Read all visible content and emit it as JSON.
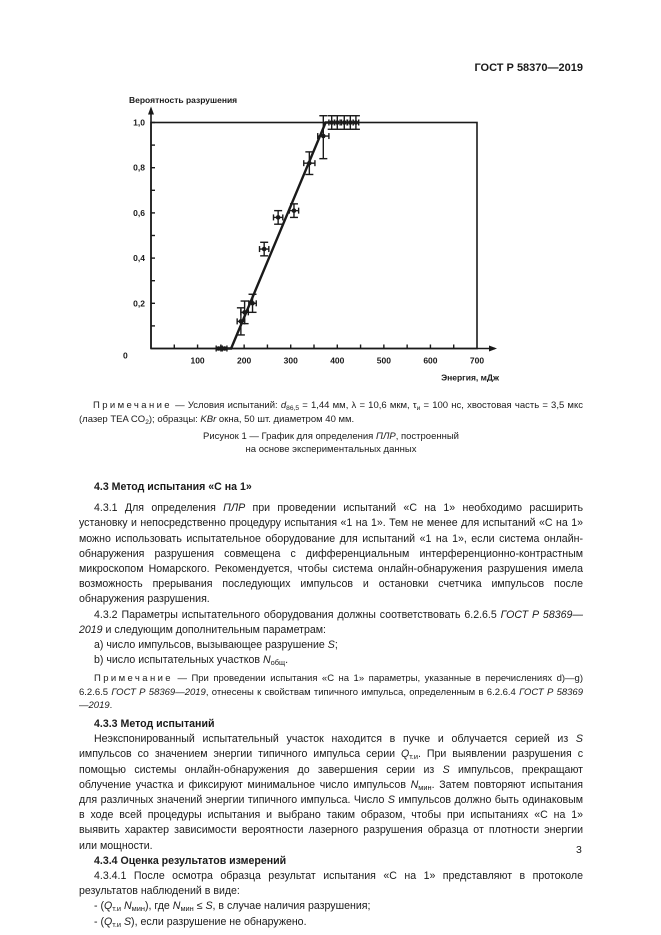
{
  "header": {
    "doc_id": "ГОСТ Р 58370—2019"
  },
  "chart_data": {
    "type": "scatter",
    "ylabel": "Вероятность разрушения",
    "xlabel": "Энергия, мДж",
    "xlim": [
      0,
      700
    ],
    "ylim": [
      0,
      1.0
    ],
    "x_ticks": [
      100,
      200,
      300,
      400,
      500,
      600,
      700
    ],
    "x_tick_labels": [
      "100",
      "200",
      "300",
      "400",
      "500",
      "600",
      "700"
    ],
    "y_ticks": [
      0,
      0.2,
      0.4,
      0.6,
      0.8,
      1.0
    ],
    "y_tick_labels": [
      "0",
      "0,2",
      "0,4",
      "0,6",
      "0,8",
      "1,0"
    ],
    "grid": false,
    "points": [
      {
        "x": 145,
        "y": 0,
        "xerr": 5,
        "yerr": 0
      },
      {
        "x": 158,
        "y": 0,
        "xerr": 5,
        "yerr": 0
      },
      {
        "x": 193,
        "y": 0.12,
        "xerr": 8,
        "yerr": 0.06
      },
      {
        "x": 201,
        "y": 0.16,
        "xerr": 8,
        "yerr": 0.05
      },
      {
        "x": 218,
        "y": 0.2,
        "xerr": 8,
        "yerr": 0.04
      },
      {
        "x": 243,
        "y": 0.44,
        "xerr": 10,
        "yerr": 0.03
      },
      {
        "x": 273,
        "y": 0.58,
        "xerr": 10,
        "yerr": 0.03
      },
      {
        "x": 307,
        "y": 0.61,
        "xerr": 10,
        "yerr": 0.03
      },
      {
        "x": 340,
        "y": 0.82,
        "xerr": 12,
        "yerr": 0.05
      },
      {
        "x": 370,
        "y": 0.94,
        "xerr": 12,
        "yerr": 0.1
      },
      {
        "x": 388,
        "y": 1.0,
        "xerr": 6,
        "yerr": 0.03
      },
      {
        "x": 400,
        "y": 1.0,
        "xerr": 6,
        "yerr": 0.03
      },
      {
        "x": 415,
        "y": 1.0,
        "xerr": 6,
        "yerr": 0.03
      },
      {
        "x": 428,
        "y": 1.0,
        "xerr": 6,
        "yerr": 0.03
      },
      {
        "x": 440,
        "y": 1.0,
        "xerr": 6,
        "yerr": 0.03
      }
    ],
    "fit_line": {
      "x": [
        140,
        172,
        375,
        385
      ],
      "y": [
        0,
        0,
        1.0,
        1.0
      ]
    }
  },
  "note1": {
    "label": "Примечание",
    "segments": [
      {
        "t": " — Условия испытаний: "
      },
      {
        "t": "d",
        "i": true
      },
      {
        "t": "86,5",
        "sub": true
      },
      {
        "t": " = 1,44 мм, λ = 10,6 мкм, τ"
      },
      {
        "t": "и",
        "sub": true
      },
      {
        "t": " = 100 нс, хвостовая часть = 3,5 мкс (лазер TEA CO"
      },
      {
        "t": "2",
        "sub": true
      },
      {
        "t": "); образцы: "
      },
      {
        "t": "KBr",
        "i": true
      },
      {
        "t": " окна, 50 шт. диаметром 40 мм."
      }
    ]
  },
  "caption": {
    "line1_a": "Рисунок 1 — График для определения ",
    "line1_b": "ПЛР",
    "line1_c": ", построенный",
    "line2": "на основе экспериментальных данных"
  },
  "body": [
    {
      "cls": "h gap",
      "segments": [
        {
          "t": "4.3 Метод испытания «С на 1»"
        }
      ]
    },
    {
      "cls": "gap",
      "segments": [
        {
          "t": "4.3.1 Для определения "
        },
        {
          "t": "ПЛР",
          "i": true
        },
        {
          "t": " при проведении испытаний «С на 1» необходимо расширить установку и непосредственно процедуру испытания «1 на 1». Тем не менее для испытаний «С на 1» можно использовать испытательное оборудование для испытаний «1 на 1», если система онлайн-обнаружения разрушения совмещена с дифференциальным интерференционно-контрастным микроскопом Номарского. Рекомендуется, чтобы система онлайн-обнаружения разрушения имела возможность прерывания последующих импульсов и остановки счетчика импульсов после обнаружения разрушения."
        }
      ]
    },
    {
      "cls": "",
      "segments": [
        {
          "t": "4.3.2 Параметры испытательного оборудования должны соответствовать 6.2.6.5 "
        },
        {
          "t": "ГОСТ Р 58369—2019",
          "i": true
        },
        {
          "t": " и следующим дополнительным параметрам:"
        }
      ]
    },
    {
      "cls": "li",
      "segments": [
        {
          "t": "a) число импульсов, вызывающее разрушение "
        },
        {
          "t": "S",
          "i": true
        },
        {
          "t": ";"
        }
      ]
    },
    {
      "cls": "li",
      "segments": [
        {
          "t": "b) число испытательных участков "
        },
        {
          "t": "N",
          "i": true
        },
        {
          "t": "общ",
          "sub": true
        },
        {
          "t": "."
        }
      ]
    },
    {
      "cls": "nt",
      "segments": [
        {
          "t": "Примечание",
          "spaced": true
        },
        {
          "t": " — При проведении испытания «С на 1» параметры, указанные в перечислениях d)—g) 6.2.6.5 "
        },
        {
          "t": "ГОСТ Р 58369—2019",
          "i": true
        },
        {
          "t": ", отнесены к свойствам типичного импульса, определенным в 6.2.6.4 "
        },
        {
          "t": "ГОСТ Р 58369—2019",
          "i": true
        },
        {
          "t": "."
        }
      ]
    },
    {
      "cls": "h",
      "segments": [
        {
          "t": "4.3.3 Метод испытаний"
        }
      ]
    },
    {
      "cls": "",
      "segments": [
        {
          "t": "Неэкспонированный испытательный участок находится в пучке и облучается серией из "
        },
        {
          "t": "S",
          "i": true
        },
        {
          "t": " импульсов со значением энергии типичного импульса серии "
        },
        {
          "t": "Q",
          "i": true
        },
        {
          "t": "т.и",
          "sub": true
        },
        {
          "t": ". При выявлении разрушения с помощью системы онлайн-обнаружения до завершения серии из "
        },
        {
          "t": "S",
          "i": true
        },
        {
          "t": " импульсов, прекращают облучение участка и фиксируют минимальное число импульсов "
        },
        {
          "t": "N",
          "i": true
        },
        {
          "t": "мин",
          "sub": true
        },
        {
          "t": ". Затем повторяют испытания для различных значений энергии типичного импульса. Число "
        },
        {
          "t": "S",
          "i": true
        },
        {
          "t": " импульсов должно быть одинаковым в ходе всей процедуры испытания и выбрано таким образом, чтобы при испытаниях «С на 1» выявить характер зависимости вероятности лазерного разрушения образца от плотности энергии или мощности."
        }
      ]
    },
    {
      "cls": "h",
      "segments": [
        {
          "t": "4.3.4 Оценка результатов измерений"
        }
      ]
    },
    {
      "cls": "",
      "segments": [
        {
          "t": "4.3.4.1 После осмотра образца результат испытания «С на 1» представляют в протоколе результатов наблюдений в виде:"
        }
      ]
    },
    {
      "cls": "li",
      "segments": [
        {
          "t": "- ("
        },
        {
          "t": "Q",
          "i": true
        },
        {
          "t": "т.и",
          "sub": true
        },
        {
          "t": " "
        },
        {
          "t": "N",
          "i": true
        },
        {
          "t": "мин",
          "sub": true
        },
        {
          "t": "), где "
        },
        {
          "t": "N",
          "i": true
        },
        {
          "t": "мин",
          "sub": true
        },
        {
          "t": " ≤ "
        },
        {
          "t": "S",
          "i": true
        },
        {
          "t": ", в случае наличия разрушения;"
        }
      ]
    },
    {
      "cls": "li",
      "segments": [
        {
          "t": "- ("
        },
        {
          "t": "Q",
          "i": true
        },
        {
          "t": "т.и",
          "sub": true
        },
        {
          "t": " "
        },
        {
          "t": "S",
          "i": true
        },
        {
          "t": "), если разрушение не обнаружено."
        }
      ]
    }
  ],
  "page_number": "3"
}
